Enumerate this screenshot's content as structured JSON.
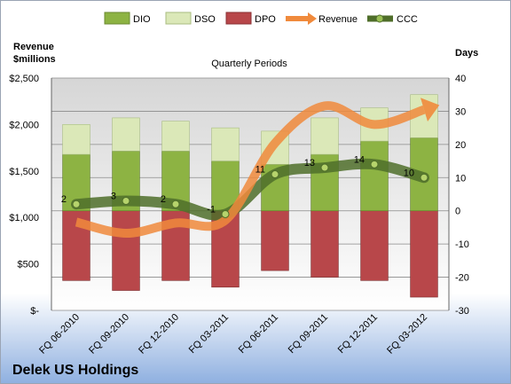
{
  "company": "Delek US Holdings",
  "chart_data": {
    "type": "bar",
    "title": "Quarterly Periods",
    "left_axis_title": [
      "Revenue",
      "$millions"
    ],
    "right_axis_title": "Days",
    "categories": [
      "FQ 06-2010",
      "FQ 09-2010",
      "FQ 12-2010",
      "FQ 03-2011",
      "FQ 06-2011",
      "FQ 09-2011",
      "FQ 12-2011",
      "FQ 03-2012"
    ],
    "left_ticks": [
      "$2,500",
      "$2,000",
      "$1,500",
      "$1,000",
      "$500",
      "$-"
    ],
    "left_ylim": [
      0,
      2500
    ],
    "right_ticks": [
      "40",
      "30",
      "20",
      "10",
      "0",
      "-10",
      "-20",
      "-30"
    ],
    "right_ylim": [
      -30,
      40
    ],
    "grid": true,
    "legend_position": "top",
    "series": [
      {
        "name": "DIO",
        "axis": "right",
        "stacked": true,
        "color": "#8db343",
        "values": [
          17,
          18,
          18,
          15,
          14,
          17,
          21,
          22
        ]
      },
      {
        "name": "DSO",
        "axis": "right",
        "stacked": true,
        "color": "#dbe8b8",
        "values": [
          9,
          10,
          9,
          10,
          10,
          11,
          10,
          13
        ]
      },
      {
        "name": "DPO",
        "axis": "right",
        "stacked": true,
        "negative": true,
        "color": "#b8474a",
        "values": [
          -21,
          -24,
          -21,
          -23,
          -18,
          -20,
          -21,
          -26
        ]
      },
      {
        "name": "Revenue",
        "axis": "left",
        "type": "line",
        "color": "#f08a3c",
        "values": [
          950,
          830,
          940,
          970,
          1800,
          2200,
          2000,
          2160
        ]
      },
      {
        "name": "CCC",
        "axis": "right",
        "type": "line",
        "color": "#4f6e2a",
        "values": [
          2,
          3,
          2,
          -1,
          11,
          13,
          14,
          10
        ]
      }
    ],
    "ccc_labels": [
      "2",
      "3",
      "2",
      "-1",
      "11",
      "13",
      "14",
      "10"
    ]
  }
}
